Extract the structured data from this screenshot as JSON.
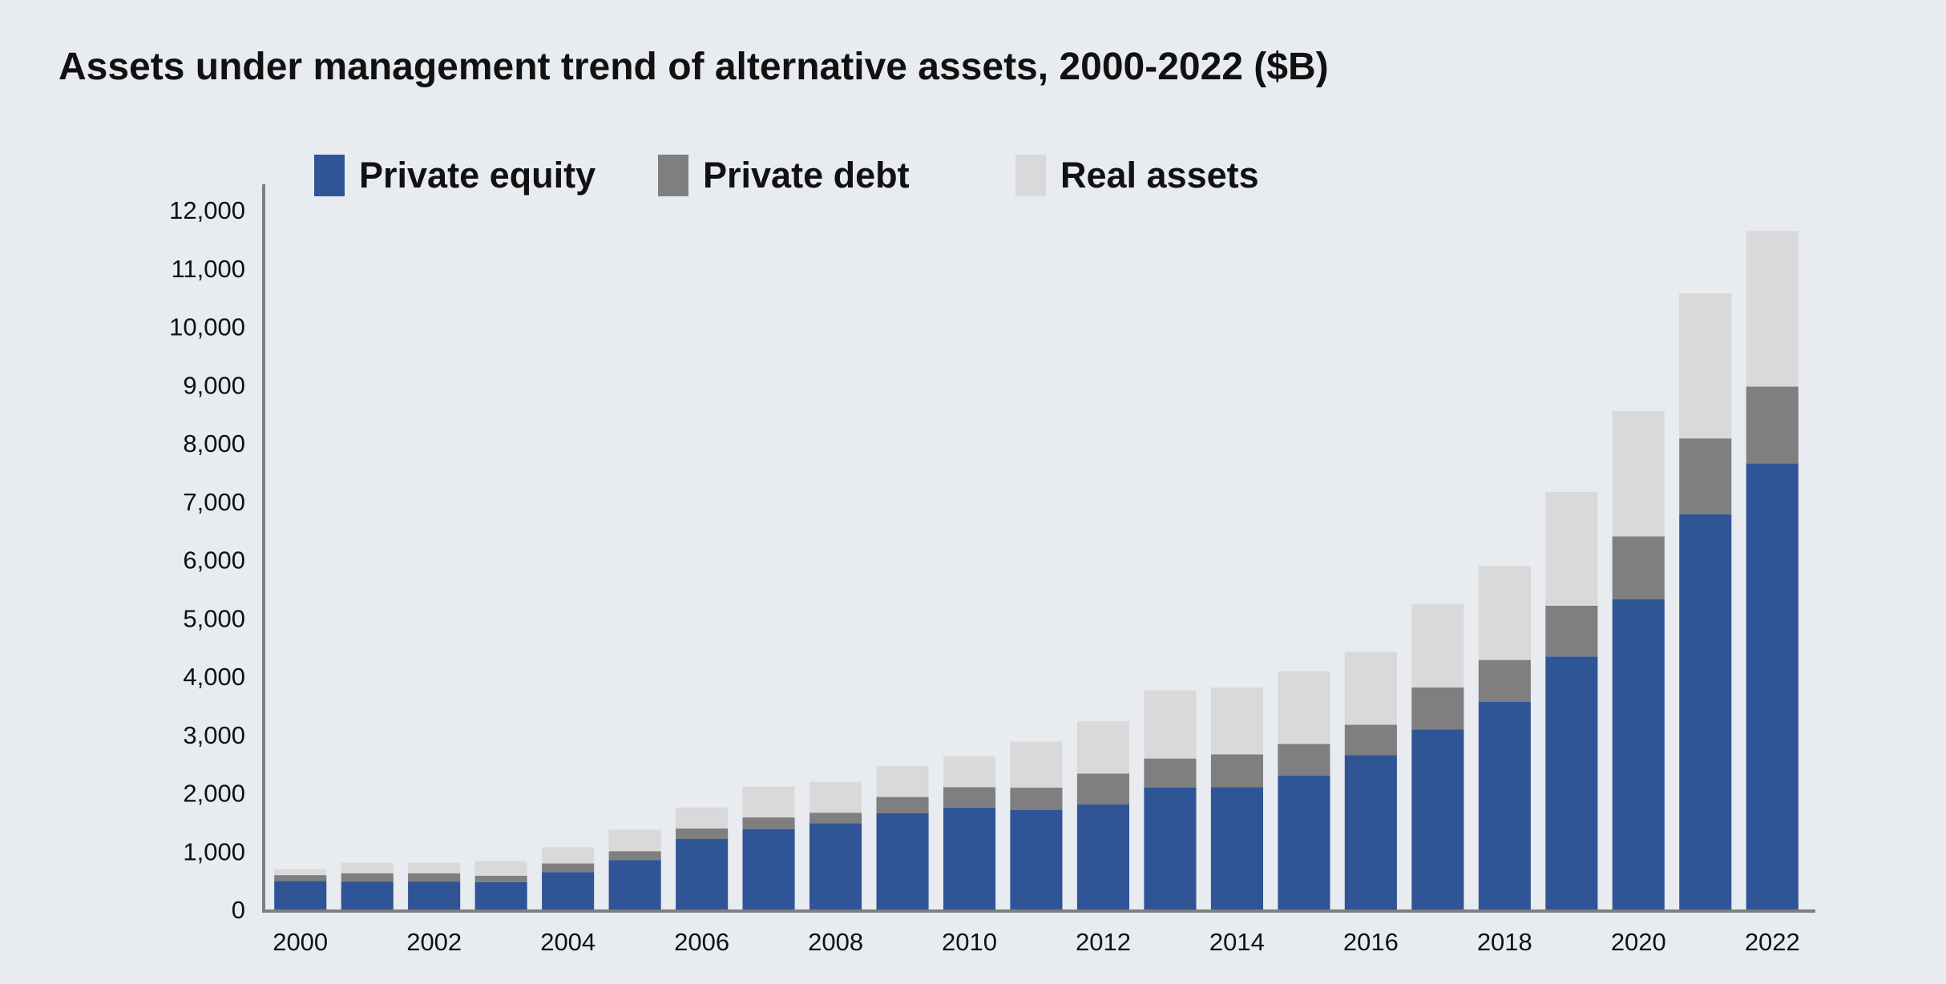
{
  "chart_data": {
    "type": "bar",
    "stacked": true,
    "title": "Assets under management trend of alternative assets, 2000-2022 ($B)",
    "xlabel": "",
    "ylabel": "",
    "ylim": [
      0,
      12000
    ],
    "y_ticks": [
      0,
      1000,
      2000,
      3000,
      4000,
      5000,
      6000,
      7000,
      8000,
      9000,
      10000,
      11000,
      12000
    ],
    "y_tick_labels": [
      "0",
      "1,000",
      "2,000",
      "3,000",
      "4,000",
      "5,000",
      "6,000",
      "7,000",
      "8,000",
      "9,000",
      "10,000",
      "11,000",
      "12,000"
    ],
    "categories": [
      "2000",
      "2001",
      "2002",
      "2003",
      "2004",
      "2005",
      "2006",
      "2007",
      "2008",
      "2009",
      "2010",
      "2011",
      "2012",
      "2013",
      "2014",
      "2015",
      "2016",
      "2017",
      "2018",
      "2019",
      "2020",
      "2021",
      "2022"
    ],
    "x_tick_labels": [
      "2000",
      "2002",
      "2004",
      "2006",
      "2008",
      "2010",
      "2012",
      "2014",
      "2016",
      "2018",
      "2020",
      "2022"
    ],
    "grid": false,
    "legend_position": "top",
    "series": [
      {
        "name": "Private equity",
        "color": "#2f5597",
        "values": [
          490,
          480,
          480,
          470,
          640,
          850,
          1210,
          1380,
          1480,
          1650,
          1750,
          1710,
          1800,
          2090,
          2100,
          2300,
          2650,
          3090,
          3560,
          4340,
          5320,
          6780,
          7650
        ]
      },
      {
        "name": "Private debt",
        "color": "#7f7f7f",
        "values": [
          100,
          140,
          140,
          110,
          150,
          150,
          180,
          200,
          180,
          280,
          350,
          380,
          530,
          500,
          560,
          540,
          520,
          720,
          720,
          870,
          1080,
          1300,
          1320
        ]
      },
      {
        "name": "Real assets",
        "color": "#d9d9d9",
        "values": [
          100,
          180,
          180,
          250,
          280,
          370,
          360,
          530,
          530,
          530,
          530,
          790,
          900,
          1170,
          1150,
          1250,
          1250,
          1430,
          1610,
          1950,
          2150,
          2490,
          2670
        ]
      }
    ]
  }
}
